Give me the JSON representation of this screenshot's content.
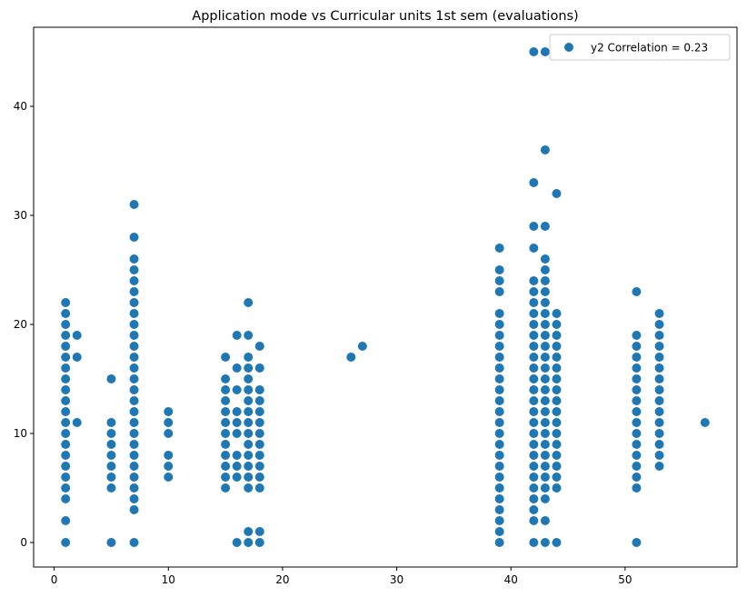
{
  "chart_data": {
    "type": "scatter",
    "title": "Application mode vs Curricular units 1st sem (evaluations)",
    "xlabel": "",
    "ylabel": "",
    "xlim": [
      -1.8,
      59.8
    ],
    "ylim": [
      -2.25,
      47.25
    ],
    "xticks": [
      0,
      10,
      20,
      30,
      40,
      50
    ],
    "yticks": [
      0,
      10,
      20,
      30,
      40
    ],
    "grid": false,
    "legend": {
      "placement": "top-right",
      "entries": [
        "y2 Correlation = 0.23"
      ]
    },
    "colors": {
      "marker": "#1f77b4"
    },
    "series": [
      {
        "name": "y2 Correlation = 0.23",
        "points": [
          [
            1,
            0
          ],
          [
            1,
            2
          ],
          [
            1,
            4
          ],
          [
            1,
            5
          ],
          [
            1,
            6
          ],
          [
            1,
            7
          ],
          [
            1,
            8
          ],
          [
            1,
            9
          ],
          [
            1,
            10
          ],
          [
            1,
            11
          ],
          [
            1,
            12
          ],
          [
            1,
            13
          ],
          [
            1,
            14
          ],
          [
            1,
            15
          ],
          [
            1,
            16
          ],
          [
            1,
            17
          ],
          [
            1,
            18
          ],
          [
            1,
            19
          ],
          [
            1,
            20
          ],
          [
            1,
            21
          ],
          [
            1,
            22
          ],
          [
            2,
            11
          ],
          [
            2,
            17
          ],
          [
            2,
            19
          ],
          [
            5,
            0
          ],
          [
            5,
            5
          ],
          [
            5,
            6
          ],
          [
            5,
            7
          ],
          [
            5,
            8
          ],
          [
            5,
            9
          ],
          [
            5,
            10
          ],
          [
            5,
            11
          ],
          [
            5,
            15
          ],
          [
            7,
            0
          ],
          [
            7,
            3
          ],
          [
            7,
            4
          ],
          [
            7,
            5
          ],
          [
            7,
            6
          ],
          [
            7,
            7
          ],
          [
            7,
            8
          ],
          [
            7,
            9
          ],
          [
            7,
            10
          ],
          [
            7,
            11
          ],
          [
            7,
            12
          ],
          [
            7,
            13
          ],
          [
            7,
            14
          ],
          [
            7,
            15
          ],
          [
            7,
            16
          ],
          [
            7,
            17
          ],
          [
            7,
            18
          ],
          [
            7,
            19
          ],
          [
            7,
            20
          ],
          [
            7,
            21
          ],
          [
            7,
            22
          ],
          [
            7,
            23
          ],
          [
            7,
            24
          ],
          [
            7,
            25
          ],
          [
            7,
            26
          ],
          [
            7,
            28
          ],
          [
            7,
            31
          ],
          [
            10,
            6
          ],
          [
            10,
            7
          ],
          [
            10,
            8
          ],
          [
            10,
            10
          ],
          [
            10,
            11
          ],
          [
            10,
            12
          ],
          [
            15,
            5
          ],
          [
            15,
            6
          ],
          [
            15,
            7
          ],
          [
            15,
            8
          ],
          [
            15,
            9
          ],
          [
            15,
            10
          ],
          [
            15,
            11
          ],
          [
            15,
            12
          ],
          [
            15,
            13
          ],
          [
            15,
            14
          ],
          [
            15,
            15
          ],
          [
            15,
            17
          ],
          [
            16,
            0
          ],
          [
            16,
            6
          ],
          [
            16,
            7
          ],
          [
            16,
            8
          ],
          [
            16,
            10
          ],
          [
            16,
            11
          ],
          [
            16,
            12
          ],
          [
            16,
            14
          ],
          [
            16,
            16
          ],
          [
            16,
            19
          ],
          [
            17,
            0
          ],
          [
            17,
            1
          ],
          [
            17,
            5
          ],
          [
            17,
            6
          ],
          [
            17,
            7
          ],
          [
            17,
            8
          ],
          [
            17,
            9
          ],
          [
            17,
            10
          ],
          [
            17,
            11
          ],
          [
            17,
            12
          ],
          [
            17,
            13
          ],
          [
            17,
            14
          ],
          [
            17,
            15
          ],
          [
            17,
            16
          ],
          [
            17,
            17
          ],
          [
            17,
            19
          ],
          [
            17,
            22
          ],
          [
            18,
            0
          ],
          [
            18,
            1
          ],
          [
            18,
            5
          ],
          [
            18,
            6
          ],
          [
            18,
            7
          ],
          [
            18,
            8
          ],
          [
            18,
            9
          ],
          [
            18,
            10
          ],
          [
            18,
            11
          ],
          [
            18,
            12
          ],
          [
            18,
            13
          ],
          [
            18,
            14
          ],
          [
            18,
            16
          ],
          [
            18,
            18
          ],
          [
            26,
            17
          ],
          [
            27,
            18
          ],
          [
            39,
            0
          ],
          [
            39,
            1
          ],
          [
            39,
            2
          ],
          [
            39,
            3
          ],
          [
            39,
            4
          ],
          [
            39,
            5
          ],
          [
            39,
            6
          ],
          [
            39,
            7
          ],
          [
            39,
            8
          ],
          [
            39,
            9
          ],
          [
            39,
            10
          ],
          [
            39,
            11
          ],
          [
            39,
            12
          ],
          [
            39,
            13
          ],
          [
            39,
            14
          ],
          [
            39,
            15
          ],
          [
            39,
            16
          ],
          [
            39,
            17
          ],
          [
            39,
            18
          ],
          [
            39,
            19
          ],
          [
            39,
            20
          ],
          [
            39,
            21
          ],
          [
            39,
            23
          ],
          [
            39,
            24
          ],
          [
            39,
            25
          ],
          [
            39,
            27
          ],
          [
            42,
            0
          ],
          [
            42,
            2
          ],
          [
            42,
            3
          ],
          [
            42,
            4
          ],
          [
            42,
            5
          ],
          [
            42,
            6
          ],
          [
            42,
            7
          ],
          [
            42,
            8
          ],
          [
            42,
            9
          ],
          [
            42,
            10
          ],
          [
            42,
            11
          ],
          [
            42,
            12
          ],
          [
            42,
            13
          ],
          [
            42,
            14
          ],
          [
            42,
            15
          ],
          [
            42,
            16
          ],
          [
            42,
            17
          ],
          [
            42,
            18
          ],
          [
            42,
            19
          ],
          [
            42,
            20
          ],
          [
            42,
            21
          ],
          [
            42,
            22
          ],
          [
            42,
            23
          ],
          [
            42,
            24
          ],
          [
            42,
            27
          ],
          [
            42,
            29
          ],
          [
            42,
            33
          ],
          [
            42,
            45
          ],
          [
            43,
            0
          ],
          [
            43,
            2
          ],
          [
            43,
            4
          ],
          [
            43,
            5
          ],
          [
            43,
            6
          ],
          [
            43,
            7
          ],
          [
            43,
            8
          ],
          [
            43,
            9
          ],
          [
            43,
            10
          ],
          [
            43,
            11
          ],
          [
            43,
            12
          ],
          [
            43,
            13
          ],
          [
            43,
            14
          ],
          [
            43,
            15
          ],
          [
            43,
            16
          ],
          [
            43,
            17
          ],
          [
            43,
            18
          ],
          [
            43,
            19
          ],
          [
            43,
            20
          ],
          [
            43,
            21
          ],
          [
            43,
            22
          ],
          [
            43,
            23
          ],
          [
            43,
            24
          ],
          [
            43,
            25
          ],
          [
            43,
            26
          ],
          [
            43,
            29
          ],
          [
            43,
            36
          ],
          [
            43,
            45
          ],
          [
            44,
            0
          ],
          [
            44,
            5
          ],
          [
            44,
            6
          ],
          [
            44,
            7
          ],
          [
            44,
            8
          ],
          [
            44,
            9
          ],
          [
            44,
            10
          ],
          [
            44,
            11
          ],
          [
            44,
            12
          ],
          [
            44,
            13
          ],
          [
            44,
            14
          ],
          [
            44,
            15
          ],
          [
            44,
            16
          ],
          [
            44,
            17
          ],
          [
            44,
            18
          ],
          [
            44,
            19
          ],
          [
            44,
            20
          ],
          [
            44,
            21
          ],
          [
            44,
            32
          ],
          [
            51,
            0
          ],
          [
            51,
            5
          ],
          [
            51,
            6
          ],
          [
            51,
            7
          ],
          [
            51,
            8
          ],
          [
            51,
            9
          ],
          [
            51,
            10
          ],
          [
            51,
            11
          ],
          [
            51,
            12
          ],
          [
            51,
            13
          ],
          [
            51,
            14
          ],
          [
            51,
            15
          ],
          [
            51,
            16
          ],
          [
            51,
            17
          ],
          [
            51,
            18
          ],
          [
            51,
            19
          ],
          [
            51,
            23
          ],
          [
            53,
            7
          ],
          [
            53,
            8
          ],
          [
            53,
            9
          ],
          [
            53,
            10
          ],
          [
            53,
            11
          ],
          [
            53,
            12
          ],
          [
            53,
            13
          ],
          [
            53,
            14
          ],
          [
            53,
            15
          ],
          [
            53,
            16
          ],
          [
            53,
            17
          ],
          [
            53,
            18
          ],
          [
            53,
            19
          ],
          [
            53,
            20
          ],
          [
            53,
            21
          ],
          [
            57,
            11
          ]
        ]
      }
    ]
  }
}
